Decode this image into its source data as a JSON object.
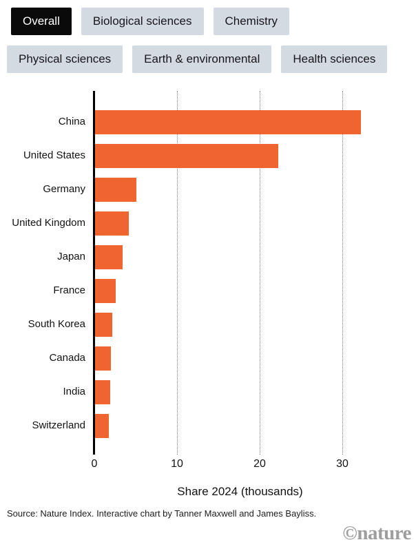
{
  "filters": {
    "buttons": [
      {
        "label": "Overall",
        "active": true
      },
      {
        "label": "Biological sciences",
        "active": false
      },
      {
        "label": "Chemistry",
        "active": false
      },
      {
        "label": "Physical sciences",
        "active": false
      },
      {
        "label": "Earth & environmental",
        "active": false
      },
      {
        "label": "Health sciences",
        "active": false
      }
    ]
  },
  "chart_data": {
    "type": "bar",
    "orientation": "horizontal",
    "categories": [
      "China",
      "United States",
      "Germany",
      "United Kingdom",
      "Japan",
      "France",
      "South Korea",
      "Canada",
      "India",
      "Switzerland"
    ],
    "values": [
      32.2,
      22.2,
      5.0,
      4.1,
      3.3,
      2.5,
      2.1,
      1.9,
      1.85,
      1.65
    ],
    "xlabel": "Share 2024 (thousands)",
    "xticks": [
      0,
      10,
      20,
      30
    ],
    "xlim": [
      0,
      35
    ],
    "grid": "vertical-dotted-at-10-20-30",
    "legend": "none",
    "bar_color": "#F0642F",
    "axis_color": "#000000"
  },
  "footer": {
    "source": "Source: Nature Index. Interactive chart by Tanner Maxwell and James Bayliss.",
    "branding": "©nature"
  },
  "colors": {
    "accent_orange": "#F0642F",
    "button_bg": "#D4DAE2",
    "active_button_bg": "#0A0A0A",
    "active_button_text": "#FFFFFF",
    "grid_gray": "#7E7E7E",
    "branding_gray": "#9E9E9E",
    "text": "#141414"
  }
}
